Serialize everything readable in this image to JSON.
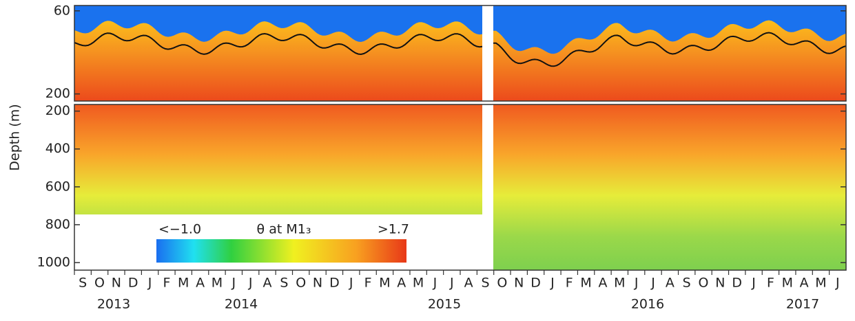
{
  "chart_data": {
    "type": "heatmap",
    "y_label": "Depth (m)",
    "panels": [
      {
        "ylim": [
          51,
          212
        ],
        "yticks": [
          60,
          200
        ]
      },
      {
        "ylim": [
          165,
          1040
        ],
        "yticks": [
          200,
          400,
          600,
          800,
          1000
        ]
      }
    ],
    "categories": [
      "S",
      "O",
      "N",
      "D",
      "J",
      "F",
      "M",
      "A",
      "M",
      "J",
      "J",
      "A",
      "S",
      "O",
      "N",
      "D",
      "J",
      "F",
      "M",
      "A",
      "M",
      "J",
      "J",
      "A",
      "S",
      "O",
      "N",
      "D",
      "J",
      "F",
      "M",
      "A",
      "M",
      "J",
      "J",
      "A",
      "S",
      "O",
      "N",
      "D",
      "J",
      "F",
      "M",
      "A",
      "M",
      "J"
    ],
    "years": [
      "2013",
      "2014",
      "2015",
      "2016",
      "2017"
    ],
    "colorbar": {
      "min_label": "<−1.0",
      "title": "θ at M1₃",
      "max_label": ">1.7"
    }
  }
}
